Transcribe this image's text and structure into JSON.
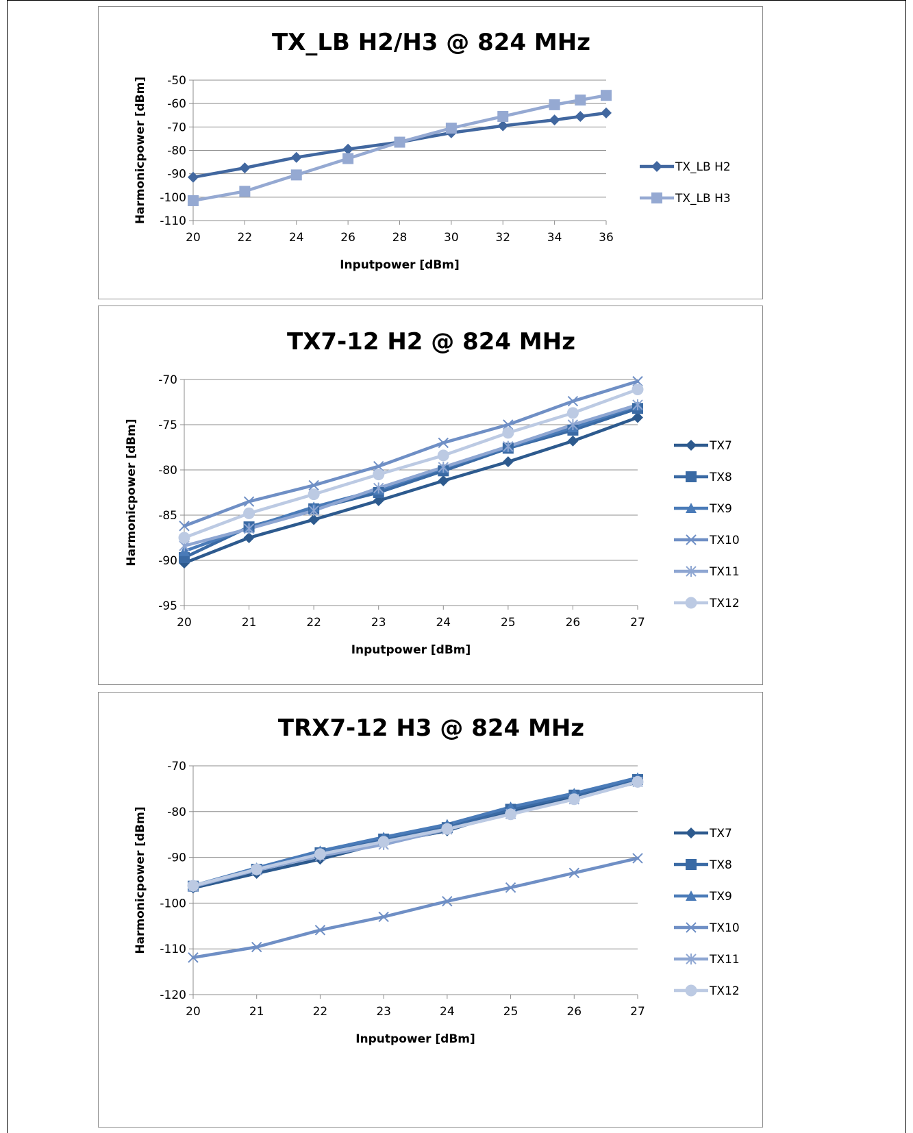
{
  "chart_data": [
    {
      "type": "line",
      "title": "TX_LB H2/H3 @ 824 MHz",
      "xlabel": "Inputpower [dBm]",
      "ylabel": "Harmonicpower [dBm]",
      "xlim": [
        20,
        36
      ],
      "ylim": [
        -110,
        -50
      ],
      "xticks": [
        20,
        22,
        24,
        26,
        28,
        30,
        32,
        34,
        36
      ],
      "yticks": [
        -110,
        -100,
        -90,
        -80,
        -70,
        -60,
        -50
      ],
      "grid": true,
      "legend": "right",
      "series": [
        {
          "name": "TX_LB H2",
          "color": "#41679f",
          "marker": "diamond",
          "x": [
            20,
            22,
            24,
            26,
            28,
            30,
            32,
            34,
            35,
            36
          ],
          "y": [
            -91.5,
            -87.5,
            -83,
            -79.5,
            -76.5,
            -72.5,
            -69.5,
            -67,
            -65.5,
            -64
          ]
        },
        {
          "name": "TX_LB H3",
          "color": "#95a9d2",
          "marker": "square",
          "x": [
            20,
            22,
            24,
            26,
            28,
            30,
            32,
            34,
            35,
            36
          ],
          "y": [
            -101.5,
            -97.5,
            -90.5,
            -83.5,
            -76.5,
            -70.5,
            -65.5,
            -60.5,
            -58.5,
            -56.5
          ]
        }
      ]
    },
    {
      "type": "line",
      "title": "TX7-12 H2 @ 824 MHz",
      "xlabel": "Inputpower [dBm]",
      "ylabel": "Harmonicpower [dBm]",
      "xlim": [
        20,
        27
      ],
      "ylim": [
        -95,
        -70
      ],
      "xticks": [
        20,
        21,
        22,
        23,
        24,
        25,
        26,
        27
      ],
      "yticks": [
        -95,
        -90,
        -85,
        -80,
        -75,
        -70
      ],
      "grid": true,
      "legend": "right",
      "series": [
        {
          "name": "TX7",
          "color": "#2d5a8e",
          "marker": "diamond",
          "x": [
            20,
            21,
            22,
            23,
            24,
            25,
            26,
            27
          ],
          "y": [
            -90.3,
            -87.5,
            -85.5,
            -83.4,
            -81.2,
            -79.1,
            -76.8,
            -74.2
          ]
        },
        {
          "name": "TX8",
          "color": "#3a6aa4",
          "marker": "square",
          "x": [
            20,
            21,
            22,
            23,
            24,
            25,
            26,
            27
          ],
          "y": [
            -89.7,
            -86.3,
            -84.3,
            -82.5,
            -80.1,
            -77.6,
            -75.6,
            -73.2
          ]
        },
        {
          "name": "TX9",
          "color": "#4a7bb8",
          "marker": "triangle",
          "x": [
            20,
            21,
            22,
            23,
            24,
            25,
            26,
            27
          ],
          "y": [
            -89.0,
            -86.4,
            -84.1,
            -82.2,
            -79.8,
            -77.5,
            -75.3,
            -72.9
          ]
        },
        {
          "name": "TX10",
          "color": "#6f8fc5",
          "marker": "x",
          "x": [
            20,
            21,
            22,
            23,
            24,
            25,
            26,
            27
          ],
          "y": [
            -86.2,
            -83.5,
            -81.7,
            -79.6,
            -77.0,
            -75.0,
            -72.4,
            -70.2
          ]
        },
        {
          "name": "TX11",
          "color": "#8ea6d2",
          "marker": "asterisk",
          "x": [
            20,
            21,
            22,
            23,
            24,
            25,
            26,
            27
          ],
          "y": [
            -88.4,
            -86.5,
            -84.5,
            -82.0,
            -79.7,
            -77.4,
            -75.0,
            -72.8
          ]
        },
        {
          "name": "TX12",
          "color": "#bccae3",
          "marker": "circle",
          "x": [
            20,
            21,
            22,
            23,
            24,
            25,
            26,
            27
          ],
          "y": [
            -87.5,
            -84.8,
            -82.7,
            -80.5,
            -78.4,
            -75.9,
            -73.7,
            -71.1
          ]
        }
      ]
    },
    {
      "type": "line",
      "title": "TRX7-12 H3 @ 824 MHz",
      "xlabel": "Inputpower [dBm]",
      "ylabel": "Harmonicpower [dBm]",
      "xlim": [
        20,
        27
      ],
      "ylim": [
        -120,
        -70
      ],
      "xticks": [
        20,
        21,
        22,
        23,
        24,
        25,
        26,
        27
      ],
      "yticks": [
        -120,
        -110,
        -100,
        -90,
        -80,
        -70
      ],
      "grid": true,
      "legend": "right",
      "series": [
        {
          "name": "TX7",
          "color": "#2d5a8e",
          "marker": "diamond",
          "x": [
            20,
            21,
            22,
            23,
            24,
            25,
            26,
            27
          ],
          "y": [
            -96.7,
            -93.5,
            -90.4,
            -86.8,
            -84.2,
            -79.8,
            -76.9,
            -73.6
          ]
        },
        {
          "name": "TX8",
          "color": "#3a6aa4",
          "marker": "square",
          "x": [
            20,
            21,
            22,
            23,
            24,
            25,
            26,
            27
          ],
          "y": [
            -96.3,
            -92.6,
            -89.0,
            -86.0,
            -83.5,
            -79.5,
            -76.4,
            -73.0
          ]
        },
        {
          "name": "TX9",
          "color": "#4a7bb8",
          "marker": "triangle",
          "x": [
            20,
            21,
            22,
            23,
            24,
            25,
            26,
            27
          ],
          "y": [
            -96.2,
            -92.3,
            -88.6,
            -85.6,
            -82.8,
            -79.0,
            -76.0,
            -72.6
          ]
        },
        {
          "name": "TX10",
          "color": "#6f8fc5",
          "marker": "x",
          "x": [
            20,
            21,
            22,
            23,
            24,
            25,
            26,
            27
          ],
          "y": [
            -111.9,
            -109.6,
            -105.9,
            -103.0,
            -99.6,
            -96.6,
            -93.4,
            -90.2
          ]
        },
        {
          "name": "TX11",
          "color": "#8ea6d2",
          "marker": "asterisk",
          "x": [
            20,
            21,
            22,
            23,
            24,
            25,
            26,
            27
          ],
          "y": [
            -96.4,
            -92.8,
            -89.7,
            -87.2,
            -83.9,
            -80.5,
            -77.3,
            -73.5
          ]
        },
        {
          "name": "TX12",
          "color": "#bccae3",
          "marker": "circle",
          "x": [
            20,
            21,
            22,
            23,
            24,
            25,
            26,
            27
          ],
          "y": [
            -96.2,
            -92.6,
            -89.3,
            -86.6,
            -83.8,
            -80.6,
            -77.3,
            -73.5
          ]
        }
      ]
    }
  ]
}
